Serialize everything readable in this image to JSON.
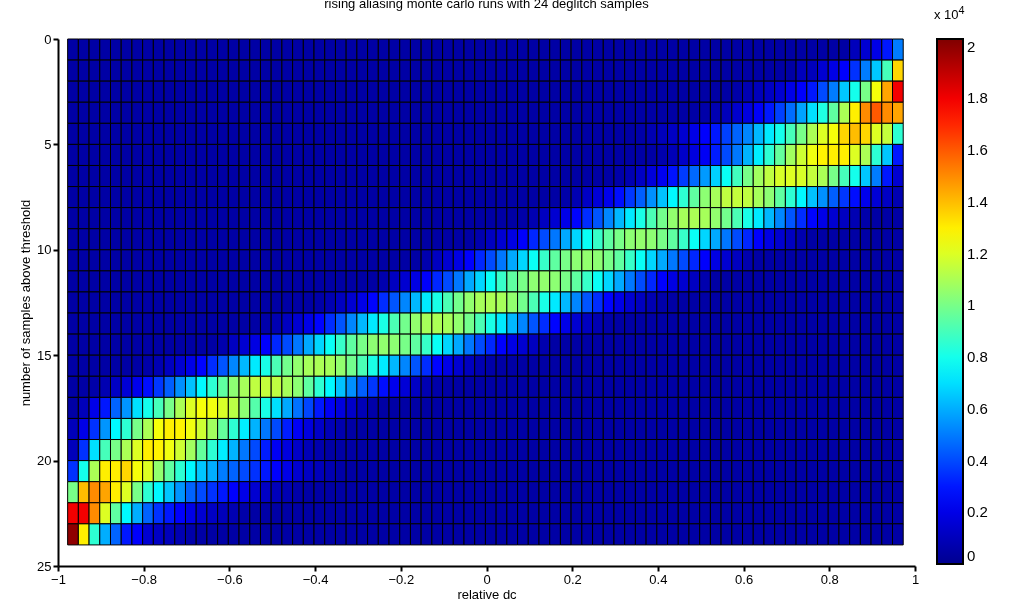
{
  "chart_data": {
    "type": "heatmap",
    "title": "rising aliasing monte carlo runs with 24 deglitch samples",
    "xlabel": "relative dc",
    "ylabel": "number of samples above threshold",
    "clabel": "x 10$^{4}$",
    "x": [
      -0.965,
      -0.94,
      -0.915,
      -0.89,
      -0.865,
      -0.84,
      -0.815,
      -0.79,
      -0.765,
      -0.74,
      -0.715,
      -0.69,
      -0.665,
      -0.64,
      -0.615,
      -0.59,
      -0.565,
      -0.54,
      -0.515,
      -0.49,
      -0.465,
      -0.44,
      -0.415,
      -0.39,
      -0.365,
      -0.34,
      -0.315,
      -0.29,
      -0.265,
      -0.24,
      -0.215,
      -0.19,
      -0.165,
      -0.14,
      -0.115,
      -0.09,
      -0.065,
      -0.04,
      -0.015,
      0.01,
      0.035,
      0.06,
      0.085,
      0.11,
      0.135,
      0.16,
      0.185,
      0.21,
      0.235,
      0.26,
      0.285,
      0.31,
      0.335,
      0.36,
      0.385,
      0.41,
      0.435,
      0.46,
      0.485,
      0.51,
      0.535,
      0.56,
      0.585,
      0.61,
      0.635,
      0.66,
      0.685,
      0.71,
      0.735,
      0.76,
      0.785,
      0.81,
      0.835,
      0.86,
      0.885,
      0.91,
      0.935,
      0.96
    ],
    "y": [
      0.5,
      1.5,
      2.5,
      3.5,
      4.5,
      5.5,
      6.5,
      7.5,
      8.5,
      9.5,
      10.5,
      11.5,
      12.5,
      13.5,
      14.5,
      15.5,
      16.5,
      17.5,
      18.5,
      19.5,
      20.5,
      21.5,
      22.5,
      23.5
    ],
    "xlim": [
      -1,
      1
    ],
    "xticks": [
      -1,
      -0.8,
      -0.6,
      -0.4,
      -0.2,
      0,
      0.2,
      0.4,
      0.6,
      0.8,
      1
    ],
    "ylim": [
      25,
      0
    ],
    "yticks": [
      0,
      5,
      10,
      15,
      20,
      25
    ],
    "clim": [
      0,
      2.03
    ],
    "cticks": [
      0,
      0.2,
      0.4,
      0.6,
      0.8,
      1,
      1.2,
      1.4,
      1.6,
      1.8,
      2
    ],
    "cells": [
      [
        0.05,
        0.05,
        0.05,
        0.05,
        0.05,
        0.05,
        0.05,
        0.05,
        0.05,
        0.05,
        0.05,
        0.05,
        0.05,
        0.05,
        0.05,
        0.05,
        0.05,
        0.05,
        0.05,
        0.05,
        0.05,
        0.05,
        0.05,
        0.05,
        0.05,
        0.05,
        0.05,
        0.05,
        0.05,
        0.05,
        0.05,
        0.05,
        0.05,
        0.05,
        0.05,
        0.05,
        0.05,
        0.05,
        0.05,
        0.05,
        0.05,
        0.05,
        0.05,
        0.05,
        0.05,
        0.05,
        0.05,
        0.05,
        0.05,
        0.05,
        0.05,
        0.05,
        0.05,
        0.05,
        0.05,
        0.05,
        0.05,
        0.05,
        0.05,
        0.05,
        0.05,
        0.05,
        0.05,
        0.05,
        0.05,
        0.05,
        0.05,
        0.05,
        0.05,
        0.05,
        0.05,
        0.05,
        0.05,
        0.1,
        0.15,
        0.2,
        0.3,
        0.5
      ],
      [
        0.05,
        0.05,
        0.05,
        0.05,
        0.05,
        0.05,
        0.05,
        0.05,
        0.05,
        0.05,
        0.05,
        0.05,
        0.05,
        0.05,
        0.05,
        0.05,
        0.05,
        0.05,
        0.05,
        0.05,
        0.05,
        0.05,
        0.05,
        0.05,
        0.05,
        0.05,
        0.05,
        0.05,
        0.05,
        0.05,
        0.05,
        0.05,
        0.05,
        0.05,
        0.05,
        0.05,
        0.05,
        0.05,
        0.05,
        0.05,
        0.05,
        0.05,
        0.05,
        0.05,
        0.05,
        0.05,
        0.05,
        0.05,
        0.05,
        0.05,
        0.05,
        0.05,
        0.05,
        0.05,
        0.05,
        0.05,
        0.05,
        0.05,
        0.05,
        0.05,
        0.05,
        0.05,
        0.05,
        0.05,
        0.05,
        0.05,
        0.05,
        0.05,
        0.1,
        0.1,
        0.15,
        0.2,
        0.25,
        0.35,
        0.5,
        0.65,
        0.9,
        1.35
      ],
      [
        0.05,
        0.05,
        0.05,
        0.05,
        0.05,
        0.05,
        0.05,
        0.05,
        0.05,
        0.05,
        0.05,
        0.05,
        0.05,
        0.05,
        0.05,
        0.05,
        0.05,
        0.05,
        0.05,
        0.05,
        0.05,
        0.05,
        0.05,
        0.05,
        0.05,
        0.05,
        0.05,
        0.05,
        0.05,
        0.05,
        0.05,
        0.05,
        0.05,
        0.05,
        0.05,
        0.05,
        0.05,
        0.05,
        0.05,
        0.05,
        0.05,
        0.05,
        0.05,
        0.05,
        0.05,
        0.05,
        0.05,
        0.05,
        0.05,
        0.05,
        0.05,
        0.05,
        0.05,
        0.05,
        0.05,
        0.05,
        0.05,
        0.05,
        0.05,
        0.05,
        0.05,
        0.05,
        0.06,
        0.08,
        0.1,
        0.12,
        0.15,
        0.2,
        0.25,
        0.3,
        0.4,
        0.5,
        0.65,
        0.8,
        1.0,
        1.25,
        1.45,
        1.8
      ],
      [
        0.05,
        0.05,
        0.05,
        0.05,
        0.05,
        0.05,
        0.05,
        0.05,
        0.05,
        0.05,
        0.05,
        0.05,
        0.05,
        0.05,
        0.05,
        0.05,
        0.05,
        0.05,
        0.05,
        0.05,
        0.05,
        0.05,
        0.05,
        0.05,
        0.05,
        0.05,
        0.05,
        0.05,
        0.05,
        0.05,
        0.05,
        0.05,
        0.05,
        0.05,
        0.05,
        0.05,
        0.05,
        0.05,
        0.05,
        0.05,
        0.05,
        0.05,
        0.05,
        0.05,
        0.05,
        0.05,
        0.05,
        0.05,
        0.05,
        0.05,
        0.05,
        0.05,
        0.05,
        0.05,
        0.05,
        0.05,
        0.05,
        0.05,
        0.05,
        0.06,
        0.08,
        0.1,
        0.14,
        0.18,
        0.24,
        0.3,
        0.38,
        0.47,
        0.58,
        0.7,
        0.82,
        0.95,
        1.1,
        1.3,
        1.5,
        1.6,
        1.5,
        1.45
      ],
      [
        0.05,
        0.05,
        0.05,
        0.05,
        0.05,
        0.05,
        0.05,
        0.05,
        0.05,
        0.05,
        0.05,
        0.05,
        0.05,
        0.05,
        0.05,
        0.05,
        0.05,
        0.05,
        0.05,
        0.05,
        0.05,
        0.05,
        0.05,
        0.05,
        0.05,
        0.05,
        0.05,
        0.05,
        0.05,
        0.05,
        0.05,
        0.05,
        0.05,
        0.05,
        0.05,
        0.05,
        0.05,
        0.05,
        0.05,
        0.05,
        0.05,
        0.05,
        0.05,
        0.05,
        0.05,
        0.05,
        0.05,
        0.05,
        0.05,
        0.05,
        0.05,
        0.05,
        0.05,
        0.06,
        0.08,
        0.1,
        0.12,
        0.15,
        0.2,
        0.25,
        0.3,
        0.38,
        0.45,
        0.52,
        0.62,
        0.72,
        0.8,
        0.9,
        1.0,
        1.1,
        1.2,
        1.25,
        1.35,
        1.4,
        1.35,
        1.2,
        1.15,
        0.85
      ],
      [
        0.05,
        0.05,
        0.05,
        0.05,
        0.05,
        0.05,
        0.05,
        0.05,
        0.05,
        0.05,
        0.05,
        0.05,
        0.05,
        0.05,
        0.05,
        0.05,
        0.05,
        0.05,
        0.05,
        0.05,
        0.05,
        0.05,
        0.05,
        0.05,
        0.05,
        0.05,
        0.05,
        0.05,
        0.05,
        0.05,
        0.05,
        0.05,
        0.05,
        0.05,
        0.05,
        0.05,
        0.05,
        0.05,
        0.05,
        0.05,
        0.05,
        0.05,
        0.05,
        0.05,
        0.05,
        0.05,
        0.05,
        0.05,
        0.05,
        0.05,
        0.05,
        0.05,
        0.05,
        0.05,
        0.05,
        0.07,
        0.09,
        0.13,
        0.18,
        0.23,
        0.31,
        0.4,
        0.49,
        0.61,
        0.73,
        0.85,
        0.96,
        1.08,
        1.17,
        1.24,
        1.29,
        1.3,
        1.3,
        1.2,
        1.1,
        0.85,
        0.65,
        0.3
      ],
      [
        0.05,
        0.05,
        0.05,
        0.05,
        0.05,
        0.05,
        0.05,
        0.05,
        0.05,
        0.05,
        0.05,
        0.05,
        0.05,
        0.05,
        0.05,
        0.05,
        0.05,
        0.05,
        0.05,
        0.05,
        0.05,
        0.05,
        0.05,
        0.05,
        0.05,
        0.05,
        0.05,
        0.05,
        0.05,
        0.05,
        0.05,
        0.05,
        0.05,
        0.05,
        0.05,
        0.05,
        0.05,
        0.05,
        0.05,
        0.05,
        0.05,
        0.05,
        0.05,
        0.05,
        0.05,
        0.05,
        0.05,
        0.05,
        0.05,
        0.05,
        0.05,
        0.06,
        0.08,
        0.12,
        0.17,
        0.22,
        0.29,
        0.37,
        0.46,
        0.56,
        0.67,
        0.78,
        0.89,
        1.0,
        1.08,
        1.14,
        1.19,
        1.2,
        1.19,
        1.15,
        1.1,
        1.0,
        0.9,
        0.8,
        0.65,
        0.5,
        0.3,
        0.15
      ],
      [
        0.05,
        0.05,
        0.05,
        0.05,
        0.05,
        0.05,
        0.05,
        0.05,
        0.05,
        0.05,
        0.05,
        0.05,
        0.05,
        0.05,
        0.05,
        0.05,
        0.05,
        0.05,
        0.05,
        0.05,
        0.05,
        0.05,
        0.05,
        0.05,
        0.05,
        0.05,
        0.05,
        0.05,
        0.05,
        0.05,
        0.05,
        0.05,
        0.05,
        0.05,
        0.05,
        0.05,
        0.05,
        0.05,
        0.05,
        0.05,
        0.05,
        0.05,
        0.05,
        0.05,
        0.05,
        0.05,
        0.06,
        0.08,
        0.12,
        0.16,
        0.21,
        0.28,
        0.36,
        0.44,
        0.54,
        0.64,
        0.75,
        0.85,
        0.95,
        1.04,
        1.09,
        1.14,
        1.15,
        1.14,
        1.09,
        1.04,
        0.95,
        0.85,
        0.75,
        0.64,
        0.54,
        0.44,
        0.36,
        0.28,
        0.21,
        0.16,
        0.12,
        0.08
      ],
      [
        0.05,
        0.05,
        0.05,
        0.05,
        0.05,
        0.05,
        0.05,
        0.05,
        0.05,
        0.05,
        0.05,
        0.05,
        0.05,
        0.05,
        0.05,
        0.05,
        0.05,
        0.05,
        0.05,
        0.05,
        0.05,
        0.05,
        0.05,
        0.05,
        0.05,
        0.05,
        0.05,
        0.05,
        0.05,
        0.05,
        0.05,
        0.05,
        0.05,
        0.05,
        0.05,
        0.05,
        0.05,
        0.05,
        0.05,
        0.05,
        0.05,
        0.05,
        0.06,
        0.08,
        0.11,
        0.15,
        0.2,
        0.26,
        0.34,
        0.42,
        0.52,
        0.62,
        0.72,
        0.81,
        0.91,
        0.99,
        1.05,
        1.09,
        1.1,
        1.09,
        1.05,
        0.99,
        0.91,
        0.81,
        0.72,
        0.62,
        0.52,
        0.42,
        0.34,
        0.26,
        0.2,
        0.15,
        0.11,
        0.08,
        0.06,
        0.05,
        0.05,
        0.05
      ],
      [
        0.05,
        0.05,
        0.05,
        0.05,
        0.05,
        0.05,
        0.05,
        0.05,
        0.05,
        0.05,
        0.05,
        0.05,
        0.05,
        0.05,
        0.05,
        0.05,
        0.05,
        0.05,
        0.05,
        0.05,
        0.05,
        0.05,
        0.05,
        0.05,
        0.05,
        0.05,
        0.05,
        0.05,
        0.05,
        0.05,
        0.05,
        0.05,
        0.05,
        0.05,
        0.05,
        0.05,
        0.05,
        0.05,
        0.07,
        0.11,
        0.15,
        0.19,
        0.25,
        0.33,
        0.4,
        0.49,
        0.59,
        0.68,
        0.78,
        0.87,
        0.95,
        1.0,
        1.04,
        1.05,
        1.04,
        1.0,
        0.95,
        0.87,
        0.78,
        0.68,
        0.59,
        0.49,
        0.4,
        0.33,
        0.25,
        0.19,
        0.15,
        0.11,
        0.07,
        0.05,
        0.05,
        0.05,
        0.05,
        0.05,
        0.05,
        0.05,
        0.05,
        0.05
      ],
      [
        0.05,
        0.05,
        0.05,
        0.05,
        0.05,
        0.05,
        0.05,
        0.05,
        0.05,
        0.05,
        0.05,
        0.05,
        0.05,
        0.05,
        0.05,
        0.05,
        0.05,
        0.05,
        0.05,
        0.05,
        0.05,
        0.05,
        0.05,
        0.05,
        0.05,
        0.05,
        0.05,
        0.05,
        0.05,
        0.05,
        0.05,
        0.05,
        0.05,
        0.07,
        0.11,
        0.15,
        0.19,
        0.25,
        0.33,
        0.4,
        0.49,
        0.59,
        0.68,
        0.78,
        0.87,
        0.95,
        1.0,
        1.04,
        1.05,
        1.04,
        1.0,
        0.95,
        0.87,
        0.78,
        0.68,
        0.59,
        0.49,
        0.4,
        0.33,
        0.25,
        0.19,
        0.15,
        0.11,
        0.07,
        0.05,
        0.05,
        0.05,
        0.05,
        0.05,
        0.05,
        0.05,
        0.05,
        0.05,
        0.05,
        0.05,
        0.05,
        0.05,
        0.05
      ],
      [
        0.05,
        0.05,
        0.05,
        0.05,
        0.05,
        0.05,
        0.05,
        0.05,
        0.05,
        0.05,
        0.05,
        0.05,
        0.05,
        0.05,
        0.05,
        0.05,
        0.05,
        0.05,
        0.05,
        0.05,
        0.05,
        0.05,
        0.05,
        0.05,
        0.05,
        0.05,
        0.05,
        0.05,
        0.05,
        0.07,
        0.11,
        0.15,
        0.19,
        0.25,
        0.33,
        0.4,
        0.49,
        0.59,
        0.68,
        0.78,
        0.87,
        0.95,
        1.0,
        1.04,
        1.05,
        1.04,
        1.0,
        0.95,
        0.87,
        0.78,
        0.68,
        0.59,
        0.49,
        0.4,
        0.33,
        0.25,
        0.19,
        0.15,
        0.11,
        0.07,
        0.05,
        0.05,
        0.05,
        0.05,
        0.05,
        0.05,
        0.05,
        0.05,
        0.05,
        0.05,
        0.05,
        0.05,
        0.05,
        0.05,
        0.05,
        0.05,
        0.05,
        0.05
      ],
      [
        0.05,
        0.05,
        0.05,
        0.05,
        0.05,
        0.05,
        0.05,
        0.05,
        0.05,
        0.05,
        0.05,
        0.05,
        0.05,
        0.05,
        0.05,
        0.05,
        0.05,
        0.05,
        0.05,
        0.05,
        0.05,
        0.05,
        0.05,
        0.06,
        0.08,
        0.11,
        0.15,
        0.2,
        0.26,
        0.34,
        0.42,
        0.52,
        0.62,
        0.72,
        0.81,
        0.91,
        0.99,
        1.05,
        1.09,
        1.1,
        1.09,
        1.05,
        0.99,
        0.91,
        0.81,
        0.72,
        0.62,
        0.52,
        0.42,
        0.34,
        0.26,
        0.2,
        0.15,
        0.11,
        0.08,
        0.06,
        0.05,
        0.05,
        0.05,
        0.05,
        0.05,
        0.05,
        0.05,
        0.05,
        0.05,
        0.05,
        0.05,
        0.05,
        0.05,
        0.05,
        0.05,
        0.05,
        0.05,
        0.05,
        0.05,
        0.05,
        0.05,
        0.05
      ],
      [
        0.05,
        0.05,
        0.05,
        0.05,
        0.05,
        0.05,
        0.05,
        0.05,
        0.05,
        0.05,
        0.05,
        0.05,
        0.05,
        0.05,
        0.05,
        0.05,
        0.05,
        0.05,
        0.06,
        0.08,
        0.11,
        0.15,
        0.2,
        0.26,
        0.34,
        0.42,
        0.52,
        0.62,
        0.72,
        0.81,
        0.91,
        0.99,
        1.05,
        1.09,
        1.1,
        1.09,
        1.05,
        0.99,
        0.91,
        0.81,
        0.72,
        0.62,
        0.52,
        0.42,
        0.34,
        0.26,
        0.2,
        0.15,
        0.11,
        0.08,
        0.06,
        0.05,
        0.05,
        0.05,
        0.05,
        0.05,
        0.05,
        0.05,
        0.05,
        0.05,
        0.05,
        0.05,
        0.05,
        0.05,
        0.05,
        0.05,
        0.05,
        0.05,
        0.05,
        0.05,
        0.05,
        0.05,
        0.05,
        0.05,
        0.05,
        0.05,
        0.05,
        0.05
      ],
      [
        0.05,
        0.05,
        0.05,
        0.05,
        0.05,
        0.05,
        0.05,
        0.05,
        0.05,
        0.05,
        0.05,
        0.05,
        0.05,
        0.05,
        0.07,
        0.11,
        0.15,
        0.19,
        0.25,
        0.33,
        0.4,
        0.49,
        0.59,
        0.68,
        0.78,
        0.87,
        0.95,
        1.0,
        1.04,
        1.05,
        1.04,
        1.0,
        0.95,
        0.87,
        0.78,
        0.68,
        0.59,
        0.49,
        0.4,
        0.33,
        0.25,
        0.19,
        0.15,
        0.11,
        0.07,
        0.05,
        0.05,
        0.05,
        0.05,
        0.05,
        0.05,
        0.05,
        0.05,
        0.05,
        0.05,
        0.05,
        0.05,
        0.05,
        0.05,
        0.05,
        0.05,
        0.05,
        0.05,
        0.05,
        0.05,
        0.05,
        0.05,
        0.05,
        0.05,
        0.05,
        0.05,
        0.05,
        0.05,
        0.05,
        0.05,
        0.05,
        0.05,
        0.05
      ],
      [
        0.05,
        0.05,
        0.05,
        0.05,
        0.05,
        0.05,
        0.05,
        0.06,
        0.08,
        0.11,
        0.15,
        0.2,
        0.26,
        0.34,
        0.42,
        0.52,
        0.62,
        0.72,
        0.81,
        0.91,
        0.99,
        1.05,
        1.09,
        1.1,
        1.09,
        1.05,
        0.99,
        0.91,
        0.81,
        0.72,
        0.62,
        0.52,
        0.42,
        0.34,
        0.26,
        0.2,
        0.15,
        0.11,
        0.08,
        0.06,
        0.05,
        0.05,
        0.05,
        0.05,
        0.05,
        0.05,
        0.05,
        0.05,
        0.05,
        0.05,
        0.05,
        0.05,
        0.05,
        0.05,
        0.05,
        0.05,
        0.05,
        0.05,
        0.05,
        0.05,
        0.05,
        0.05,
        0.05,
        0.05,
        0.05,
        0.05,
        0.05,
        0.05,
        0.05,
        0.05,
        0.05,
        0.05,
        0.05,
        0.05,
        0.05,
        0.05,
        0.05,
        0.05
      ],
      [
        0.05,
        0.05,
        0.06,
        0.08,
        0.12,
        0.16,
        0.21,
        0.28,
        0.36,
        0.44,
        0.54,
        0.64,
        0.75,
        0.85,
        0.95,
        1.04,
        1.09,
        1.14,
        1.15,
        1.14,
        1.09,
        1.04,
        0.95,
        0.85,
        0.75,
        0.64,
        0.54,
        0.44,
        0.36,
        0.28,
        0.21,
        0.16,
        0.12,
        0.08,
        0.06,
        0.05,
        0.05,
        0.05,
        0.05,
        0.05,
        0.05,
        0.05,
        0.05,
        0.05,
        0.05,
        0.05,
        0.05,
        0.05,
        0.05,
        0.05,
        0.05,
        0.05,
        0.05,
        0.05,
        0.05,
        0.05,
        0.05,
        0.05,
        0.05,
        0.05,
        0.05,
        0.05,
        0.05,
        0.05,
        0.05,
        0.05,
        0.05,
        0.05,
        0.05,
        0.05,
        0.05,
        0.05,
        0.05,
        0.05,
        0.05,
        0.05,
        0.05,
        0.05
      ],
      [
        0.05,
        0.1,
        0.2,
        0.3,
        0.45,
        0.55,
        0.7,
        0.8,
        0.9,
        1.0,
        1.1,
        1.2,
        1.25,
        1.24,
        1.19,
        1.13,
        1.04,
        0.93,
        0.81,
        0.7,
        0.59,
        0.48,
        0.39,
        0.3,
        0.23,
        0.18,
        0.13,
        0.09,
        0.06,
        0.05,
        0.05,
        0.05,
        0.05,
        0.05,
        0.05,
        0.05,
        0.05,
        0.05,
        0.05,
        0.05,
        0.05,
        0.05,
        0.05,
        0.05,
        0.05,
        0.05,
        0.05,
        0.05,
        0.05,
        0.05,
        0.05,
        0.05,
        0.05,
        0.05,
        0.05,
        0.05,
        0.05,
        0.05,
        0.05,
        0.05,
        0.05,
        0.05,
        0.05,
        0.05,
        0.05,
        0.05,
        0.05,
        0.05,
        0.05,
        0.05,
        0.05,
        0.05,
        0.05,
        0.05,
        0.05,
        0.05,
        0.05,
        0.05
      ],
      [
        0.1,
        0.2,
        0.35,
        0.55,
        0.75,
        0.85,
        1.0,
        1.1,
        1.25,
        1.3,
        1.29,
        1.24,
        1.17,
        1.08,
        0.96,
        0.85,
        0.73,
        0.61,
        0.49,
        0.4,
        0.31,
        0.23,
        0.18,
        0.13,
        0.09,
        0.07,
        0.05,
        0.05,
        0.05,
        0.05,
        0.05,
        0.05,
        0.05,
        0.05,
        0.05,
        0.05,
        0.05,
        0.05,
        0.05,
        0.05,
        0.05,
        0.05,
        0.05,
        0.05,
        0.05,
        0.05,
        0.05,
        0.05,
        0.05,
        0.05,
        0.05,
        0.05,
        0.05,
        0.05,
        0.05,
        0.05,
        0.05,
        0.05,
        0.05,
        0.05,
        0.05,
        0.05,
        0.05,
        0.05,
        0.05,
        0.05,
        0.05,
        0.05,
        0.05,
        0.05,
        0.05,
        0.05,
        0.05,
        0.05,
        0.05,
        0.05,
        0.05,
        0.05
      ],
      [
        0.1,
        0.35,
        0.7,
        0.9,
        1.0,
        1.1,
        1.2,
        1.3,
        1.29,
        1.24,
        1.17,
        1.08,
        0.96,
        0.85,
        0.73,
        0.61,
        0.49,
        0.4,
        0.31,
        0.23,
        0.18,
        0.13,
        0.09,
        0.07,
        0.05,
        0.05,
        0.05,
        0.05,
        0.05,
        0.05,
        0.05,
        0.05,
        0.05,
        0.05,
        0.05,
        0.05,
        0.05,
        0.05,
        0.05,
        0.05,
        0.05,
        0.05,
        0.05,
        0.05,
        0.05,
        0.05,
        0.05,
        0.05,
        0.05,
        0.05,
        0.05,
        0.05,
        0.05,
        0.05,
        0.05,
        0.05,
        0.05,
        0.05,
        0.05,
        0.05,
        0.05,
        0.05,
        0.05,
        0.05,
        0.05,
        0.05,
        0.05,
        0.05,
        0.05,
        0.05,
        0.05,
        0.05,
        0.05,
        0.05,
        0.05,
        0.05,
        0.05,
        0.05
      ],
      [
        0.35,
        0.8,
        1.1,
        1.3,
        1.3,
        1.35,
        1.25,
        1.2,
        1.05,
        0.95,
        0.85,
        0.75,
        0.65,
        0.6,
        0.5,
        0.45,
        0.4,
        0.35,
        0.3,
        0.25,
        0.2,
        0.15,
        0.12,
        0.1,
        0.08,
        0.06,
        0.05,
        0.05,
        0.05,
        0.05,
        0.05,
        0.05,
        0.05,
        0.05,
        0.05,
        0.05,
        0.05,
        0.05,
        0.05,
        0.05,
        0.05,
        0.05,
        0.05,
        0.05,
        0.05,
        0.05,
        0.05,
        0.05,
        0.05,
        0.05,
        0.05,
        0.05,
        0.05,
        0.05,
        0.05,
        0.05,
        0.05,
        0.05,
        0.05,
        0.05,
        0.05,
        0.05,
        0.05,
        0.05,
        0.05,
        0.05,
        0.05,
        0.05,
        0.05,
        0.05,
        0.05,
        0.05,
        0.05,
        0.05,
        0.05,
        0.05,
        0.05,
        0.05
      ],
      [
        1.0,
        1.4,
        1.5,
        1.45,
        1.3,
        1.2,
        1.0,
        0.85,
        0.75,
        0.65,
        0.55,
        0.45,
        0.4,
        0.35,
        0.3,
        0.25,
        0.2,
        0.15,
        0.12,
        0.1,
        0.08,
        0.06,
        0.05,
        0.05,
        0.05,
        0.05,
        0.05,
        0.05,
        0.05,
        0.05,
        0.05,
        0.05,
        0.05,
        0.05,
        0.05,
        0.05,
        0.05,
        0.05,
        0.05,
        0.05,
        0.05,
        0.05,
        0.05,
        0.05,
        0.05,
        0.05,
        0.05,
        0.05,
        0.05,
        0.05,
        0.05,
        0.05,
        0.05,
        0.05,
        0.05,
        0.05,
        0.05,
        0.05,
        0.05,
        0.05,
        0.05,
        0.05,
        0.05,
        0.05,
        0.05,
        0.05,
        0.05,
        0.05,
        0.05,
        0.05,
        0.05,
        0.05,
        0.05,
        0.05,
        0.05,
        0.05,
        0.05,
        0.05
      ],
      [
        1.8,
        1.8,
        1.5,
        1.2,
        0.95,
        0.75,
        0.6,
        0.45,
        0.35,
        0.3,
        0.25,
        0.2,
        0.15,
        0.12,
        0.1,
        0.08,
        0.06,
        0.05,
        0.05,
        0.05,
        0.05,
        0.05,
        0.05,
        0.05,
        0.05,
        0.05,
        0.05,
        0.05,
        0.05,
        0.05,
        0.05,
        0.05,
        0.05,
        0.05,
        0.05,
        0.05,
        0.05,
        0.05,
        0.05,
        0.05,
        0.05,
        0.05,
        0.05,
        0.05,
        0.05,
        0.05,
        0.05,
        0.05,
        0.05,
        0.05,
        0.05,
        0.05,
        0.05,
        0.05,
        0.05,
        0.05,
        0.05,
        0.05,
        0.05,
        0.05,
        0.05,
        0.05,
        0.05,
        0.05,
        0.05,
        0.05,
        0.05,
        0.05,
        0.05,
        0.05,
        0.05,
        0.05,
        0.05,
        0.05,
        0.05,
        0.05,
        0.05,
        0.05
      ],
      [
        2.0,
        1.3,
        0.85,
        0.6,
        0.45,
        0.3,
        0.25,
        0.15,
        0.12,
        0.1,
        0.08,
        0.06,
        0.05,
        0.05,
        0.05,
        0.05,
        0.05,
        0.05,
        0.05,
        0.05,
        0.05,
        0.05,
        0.05,
        0.05,
        0.05,
        0.05,
        0.05,
        0.05,
        0.05,
        0.05,
        0.05,
        0.05,
        0.05,
        0.05,
        0.05,
        0.05,
        0.05,
        0.05,
        0.05,
        0.05,
        0.05,
        0.05,
        0.05,
        0.05,
        0.05,
        0.05,
        0.05,
        0.05,
        0.05,
        0.05,
        0.05,
        0.05,
        0.05,
        0.05,
        0.05,
        0.05,
        0.05,
        0.05,
        0.05,
        0.05,
        0.05,
        0.05,
        0.05,
        0.05,
        0.05,
        0.05,
        0.05,
        0.05,
        0.05,
        0.05,
        0.05,
        0.05,
        0.05,
        0.05,
        0.05,
        0.05,
        0.05,
        0.05
      ]
    ]
  }
}
